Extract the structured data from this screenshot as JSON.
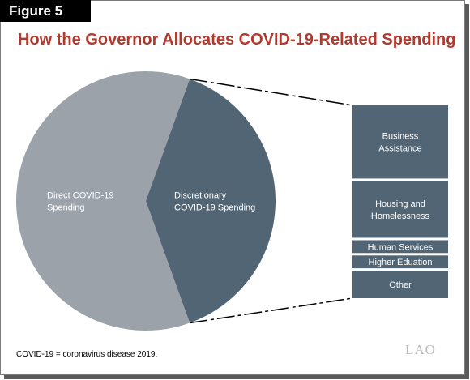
{
  "header": {
    "figure_label": "Figure 5",
    "title": "How the Governor Allocates COVID-19-Related Spending"
  },
  "chart_data": {
    "type": "pie",
    "title": "How the Governor Allocates COVID-19-Related Spending",
    "slices": [
      {
        "label_lines": [
          "Direct COVID-19",
          "Spending"
        ],
        "value": 0.61,
        "color": "#9ca2aa"
      },
      {
        "label_lines": [
          "Discretionary",
          "COVID-19 Spending"
        ],
        "value": 0.39,
        "color": "#526574"
      }
    ],
    "breakdown": {
      "of_slice": 1,
      "type": "stacked-bar",
      "color": "#526574",
      "segments": [
        {
          "label_lines": [
            "Business",
            "Assistance"
          ],
          "value": 0.4
        },
        {
          "label_lines": [
            "Housing and",
            "Homelessness"
          ],
          "value": 0.31
        },
        {
          "label_lines": [
            "Human Services"
          ],
          "value": 0.07
        },
        {
          "label_lines": [
            "Higher Eduation"
          ],
          "value": 0.07
        },
        {
          "label_lines": [
            "Other"
          ],
          "value": 0.15
        }
      ]
    }
  },
  "footnote": "COVID-19 = coronavirus disease 2019.",
  "logo": "LAO"
}
